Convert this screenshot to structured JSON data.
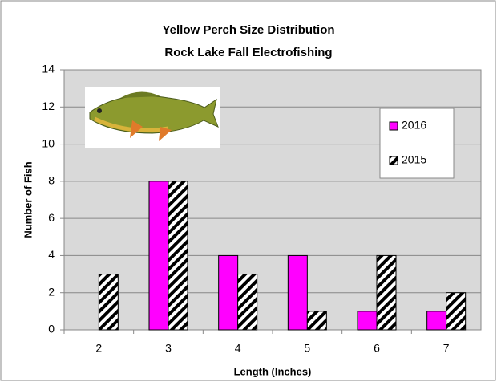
{
  "chart_data": {
    "type": "bar",
    "title": "Yellow Perch Size Distribution",
    "subtitle": "Rock Lake Fall Electrofishing",
    "x_label": "Length (Inches)",
    "y_label": "Number of Fish",
    "categories": [
      "2",
      "3",
      "4",
      "5",
      "6",
      "7"
    ],
    "series": [
      {
        "name": "2016",
        "color": "#ff00ff",
        "values": [
          0,
          8,
          4,
          4,
          1,
          1
        ]
      },
      {
        "name": "2015",
        "color": "#000000",
        "pattern": "hatch",
        "values": [
          3,
          8,
          3,
          1,
          4,
          2
        ]
      }
    ],
    "ylim": [
      0,
      14
    ],
    "yticks": [
      0,
      2,
      4,
      6,
      8,
      10,
      12,
      14
    ],
    "grid": true,
    "legend": "right"
  }
}
